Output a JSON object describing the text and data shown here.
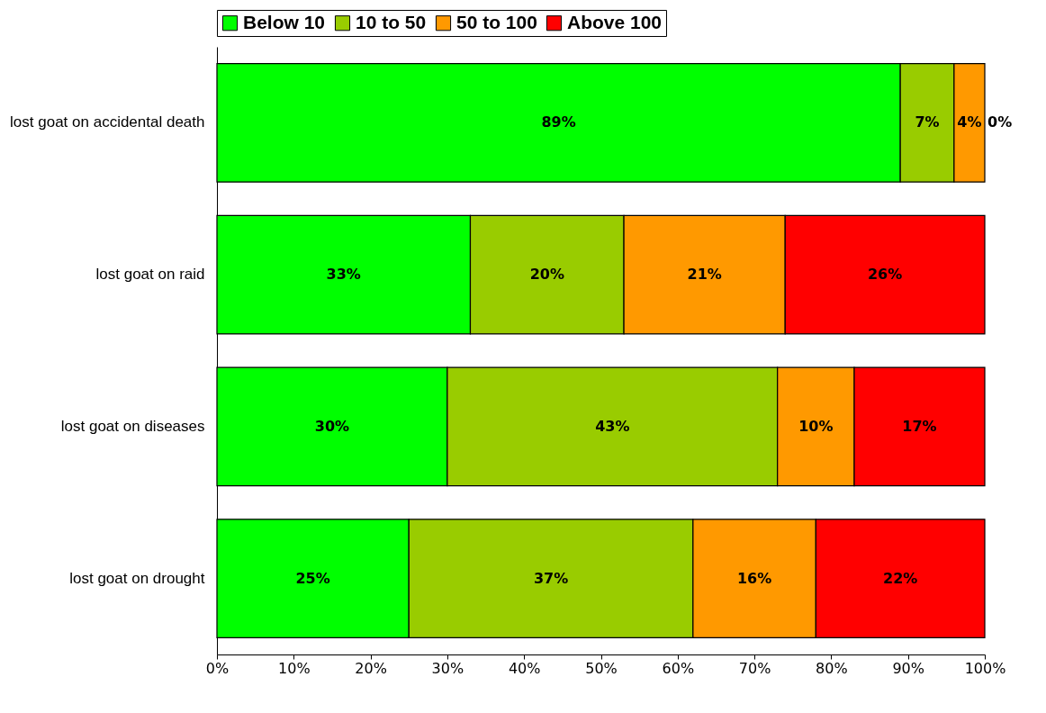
{
  "chart_data": {
    "type": "bar",
    "orientation": "horizontal",
    "stacked": true,
    "categories": [
      "lost goat on accidental death",
      "lost goat on raid",
      "lost goat on diseases",
      "lost goat on drought"
    ],
    "series": [
      {
        "name": "Below 10",
        "color": "#00ff00",
        "values": [
          89,
          33,
          30,
          25
        ],
        "value_labels": [
          "89%",
          "33%",
          "30%",
          "25%"
        ]
      },
      {
        "name": "10 to 50",
        "color": "#99cc00",
        "values": [
          7,
          20,
          43,
          37
        ],
        "value_labels": [
          "7%",
          "20%",
          "43%",
          "37%"
        ]
      },
      {
        "name": "50 to 100",
        "color": "#ff9900",
        "values": [
          4,
          21,
          10,
          16
        ],
        "value_labels": [
          "4%",
          "21%",
          "10%",
          "16%"
        ]
      },
      {
        "name": "Above 100",
        "color": "#ff0000",
        "values": [
          0,
          26,
          17,
          22
        ],
        "value_labels": [
          "0%",
          "26%",
          "17%",
          "22%"
        ]
      }
    ],
    "xlim": [
      0,
      100
    ],
    "xticks": [
      {
        "value": 0,
        "label": "0%"
      },
      {
        "value": 10,
        "label": "10%"
      },
      {
        "value": 20,
        "label": "20%"
      },
      {
        "value": 30,
        "label": "30%"
      },
      {
        "value": 40,
        "label": "40%"
      },
      {
        "value": 50,
        "label": "50%"
      },
      {
        "value": 60,
        "label": "60%"
      },
      {
        "value": 70,
        "label": "70%"
      },
      {
        "value": 80,
        "label": "80%"
      },
      {
        "value": 90,
        "label": "90%"
      },
      {
        "value": 100,
        "label": "100%"
      }
    ],
    "legend": "top",
    "grid": false
  }
}
